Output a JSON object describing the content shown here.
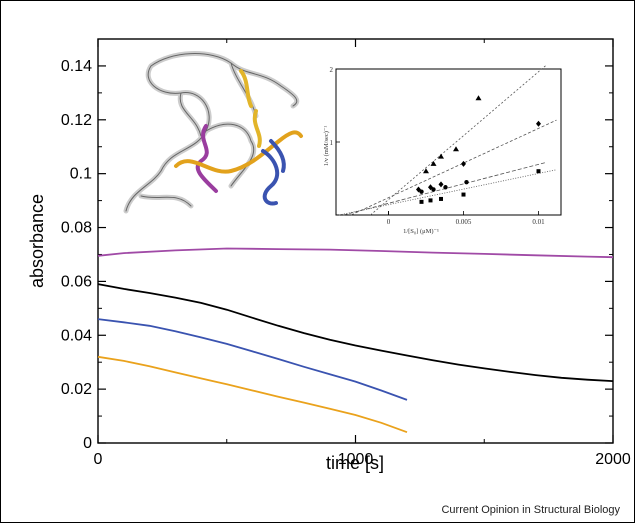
{
  "credit": "Current Opinion in Structural Biology",
  "colors": {
    "magenta": "#a04aa6",
    "black": "#000000",
    "blue": "#3a53b0",
    "orange": "#eaa21c",
    "inset_fit": "#555555"
  },
  "chart_data": [
    {
      "type": "line",
      "title": "",
      "xlabel": "time [s]",
      "ylabel": "absorbance",
      "xlim": [
        0,
        2000
      ],
      "ylim": [
        0,
        0.15
      ],
      "xticks": [
        0,
        1000,
        2000
      ],
      "xtick_labels": [
        "0",
        "1000",
        "2000"
      ],
      "yticks": [
        0,
        0.02,
        0.04,
        0.06,
        0.08,
        0.1,
        0.12,
        0.14
      ],
      "ytick_labels": [
        "0",
        "0.02",
        "0.04",
        "0.06",
        "0.08",
        "0.1",
        "0.12",
        "0.14"
      ],
      "grid": false,
      "series": [
        {
          "color": "#a04aa6",
          "x": [
            0,
            100,
            300,
            500,
            700,
            900,
            1100,
            1300,
            1500,
            1700,
            1900,
            2000
          ],
          "y": [
            0.0695,
            0.0705,
            0.0715,
            0.0722,
            0.072,
            0.0718,
            0.0713,
            0.0707,
            0.0702,
            0.0697,
            0.0692,
            0.069
          ]
        },
        {
          "color": "#000000",
          "x": [
            0,
            100,
            200,
            300,
            400,
            500,
            600,
            700,
            800,
            900,
            1000,
            1100,
            1200,
            1300,
            1400,
            1500,
            1600,
            1700,
            1800,
            1900,
            2000
          ],
          "y": [
            0.059,
            0.0572,
            0.0557,
            0.054,
            0.052,
            0.0495,
            0.0465,
            0.0435,
            0.0408,
            0.0383,
            0.0362,
            0.0343,
            0.0325,
            0.0307,
            0.0291,
            0.0277,
            0.0264,
            0.0252,
            0.0242,
            0.0235,
            0.023
          ]
        },
        {
          "color": "#3a53b0",
          "x": [
            0,
            100,
            200,
            300,
            400,
            500,
            600,
            700,
            800,
            900,
            1000,
            1100,
            1200
          ],
          "y": [
            0.046,
            0.0448,
            0.0435,
            0.0415,
            0.0392,
            0.0368,
            0.034,
            0.0312,
            0.0283,
            0.0255,
            0.0228,
            0.0195,
            0.016
          ]
        },
        {
          "color": "#eaa21c",
          "x": [
            0,
            100,
            200,
            300,
            400,
            500,
            600,
            700,
            800,
            900,
            1000,
            1100,
            1200
          ],
          "y": [
            0.032,
            0.0305,
            0.0285,
            0.0262,
            0.024,
            0.0218,
            0.0195,
            0.0172,
            0.015,
            0.0127,
            0.0104,
            0.0075,
            0.004
          ]
        }
      ]
    },
    {
      "type": "scatter",
      "title": "",
      "xlabel": "1/[S₀] (μM)⁻¹",
      "ylabel": "1/v (mM/sec)⁻¹",
      "xlim": [
        -0.0035,
        0.0115
      ],
      "ylim": [
        0,
        2
      ],
      "xticks": [
        0,
        0.005,
        0.01
      ],
      "xtick_labels": [
        "0",
        "0.005",
        "0.01"
      ],
      "yticks": [
        1,
        2
      ],
      "ytick_labels": [
        "1",
        "2"
      ],
      "series": [
        {
          "marker": "triangle",
          "x": [
            0.0025,
            0.003,
            0.0035,
            0.0045,
            0.006
          ],
          "y": [
            0.6,
            0.7,
            0.8,
            0.9,
            1.6
          ],
          "fit": [
            [
              -0.0012,
              0
            ],
            [
              0.0105,
              2.05
            ]
          ]
        },
        {
          "marker": "diamond",
          "x": [
            0.002,
            0.0028,
            0.0035,
            0.005,
            0.01
          ],
          "y": [
            0.35,
            0.38,
            0.42,
            0.7,
            1.25
          ],
          "fit": [
            [
              -0.0025,
              0
            ],
            [
              0.0112,
              1.3
            ]
          ]
        },
        {
          "marker": "circle",
          "x": [
            0.0022,
            0.003,
            0.0038,
            0.0052
          ],
          "y": [
            0.32,
            0.35,
            0.38,
            0.45
          ],
          "fit": [
            [
              -0.003,
              0
            ],
            [
              0.0105,
              0.72
            ]
          ]
        },
        {
          "marker": "square",
          "x": [
            0.0022,
            0.0028,
            0.0035,
            0.005,
            0.01
          ],
          "y": [
            0.18,
            0.2,
            0.22,
            0.28,
            0.6
          ],
          "fit": [
            [
              -0.0033,
              0
            ],
            [
              0.0112,
              0.62
            ]
          ]
        }
      ]
    }
  ]
}
